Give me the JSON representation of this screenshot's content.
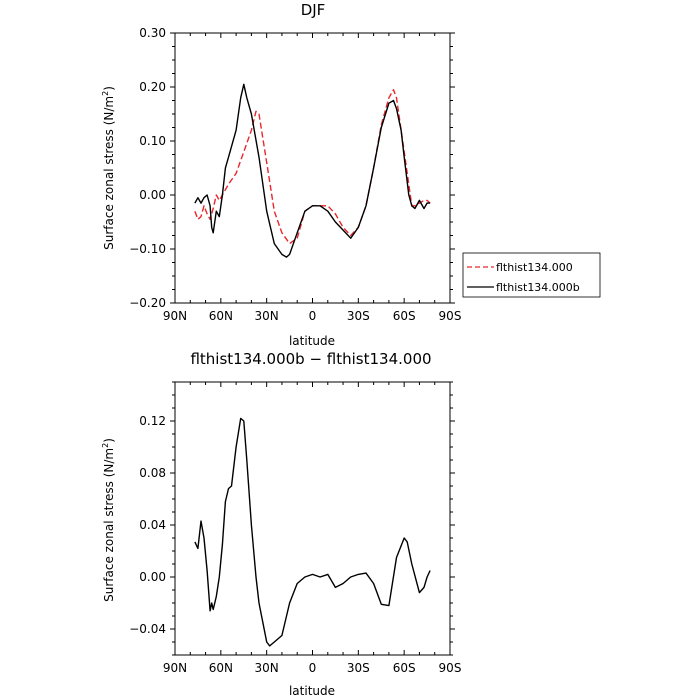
{
  "chart_data": [
    {
      "type": "line",
      "title": "DJF",
      "xlabel": "latitude",
      "ylabel": "Surface zonal stress (N/m²)",
      "ylabel_prefix": "Surface zonal stress (N/m",
      "ylabel_sup": "2",
      "ylabel_suffix": ")",
      "xlim": [
        90,
        -90
      ],
      "ylim": [
        -0.2,
        0.3
      ],
      "xticks": [
        90,
        60,
        30,
        0,
        -30,
        -60,
        -90
      ],
      "xtick_labels": [
        "90N",
        "60N",
        "30N",
        "0",
        "30S",
        "60S",
        "90S"
      ],
      "yticks": [
        -0.2,
        -0.1,
        0.0,
        0.1,
        0.2,
        0.3
      ],
      "ytick_labels": [
        "−0.20",
        "−0.10",
        "0.00",
        "0.10",
        "0.20",
        "0.30"
      ],
      "legend": {
        "placement": "right"
      },
      "series": [
        {
          "name": "flthist134.000",
          "color": "#e8262b",
          "dash": "dashed",
          "x": [
            77,
            75,
            73,
            71,
            69,
            67,
            65,
            63,
            61,
            59,
            55,
            50,
            45,
            40,
            37,
            35,
            30,
            25,
            20,
            15,
            10,
            5,
            0,
            -5,
            -10,
            -15,
            -20,
            -25,
            -30,
            -35,
            -40,
            -45,
            -50,
            -53,
            -55,
            -60,
            -65,
            -67,
            -70,
            -73,
            -75,
            -77
          ],
          "y": [
            -0.03,
            -0.045,
            -0.04,
            -0.02,
            -0.035,
            -0.045,
            -0.025,
            0.0,
            -0.01,
            0.0,
            0.02,
            0.04,
            0.08,
            0.12,
            0.155,
            0.15,
            0.06,
            -0.03,
            -0.07,
            -0.09,
            -0.08,
            -0.03,
            -0.02,
            -0.02,
            -0.02,
            -0.035,
            -0.06,
            -0.075,
            -0.06,
            -0.02,
            0.05,
            0.13,
            0.18,
            0.195,
            0.18,
            0.08,
            -0.02,
            -0.02,
            -0.015,
            -0.01,
            -0.01,
            -0.015
          ]
        },
        {
          "name": "flthist134.000b",
          "color": "#000000",
          "dash": "solid",
          "x": [
            77,
            75,
            73,
            71,
            69,
            67,
            66,
            65,
            63,
            61,
            59,
            57,
            55,
            50,
            47,
            45,
            43,
            40,
            35,
            30,
            25,
            20,
            17,
            15,
            10,
            5,
            0,
            -5,
            -10,
            -15,
            -20,
            -25,
            -30,
            -35,
            -40,
            -45,
            -50,
            -53,
            -55,
            -58,
            -60,
            -63,
            -65,
            -67,
            -70,
            -73,
            -75,
            -77
          ],
          "y": [
            -0.015,
            -0.005,
            -0.015,
            -0.005,
            0.0,
            -0.02,
            -0.06,
            -0.07,
            -0.03,
            -0.04,
            0.0,
            0.05,
            0.07,
            0.12,
            0.18,
            0.205,
            0.18,
            0.15,
            0.07,
            -0.03,
            -0.09,
            -0.11,
            -0.115,
            -0.11,
            -0.07,
            -0.03,
            -0.02,
            -0.02,
            -0.03,
            -0.05,
            -0.065,
            -0.08,
            -0.06,
            -0.02,
            0.05,
            0.125,
            0.17,
            0.175,
            0.16,
            0.12,
            0.07,
            0.0,
            -0.02,
            -0.025,
            -0.01,
            -0.025,
            -0.015,
            -0.015
          ]
        }
      ]
    },
    {
      "type": "line",
      "title": "flthist134.000b − flthist134.000",
      "xlabel": "latitude",
      "ylabel": "Surface zonal stress (N/m²)",
      "ylabel_prefix": "Surface zonal stress (N/m",
      "ylabel_sup": "2",
      "ylabel_suffix": ")",
      "xlim": [
        90,
        -90
      ],
      "ylim": [
        -0.06,
        0.15
      ],
      "xticks": [
        90,
        60,
        30,
        0,
        -30,
        -60,
        -90
      ],
      "xtick_labels": [
        "90N",
        "60N",
        "30N",
        "0",
        "30S",
        "60S",
        "90S"
      ],
      "yticks": [
        -0.04,
        0.0,
        0.04,
        0.08,
        0.12
      ],
      "ytick_labels": [
        "−0.04",
        "0.00",
        "0.04",
        "0.08",
        "0.12"
      ],
      "series": [
        {
          "color": "#000000",
          "dash": "solid",
          "x": [
            77,
            75,
            73,
            71,
            69,
            67,
            66,
            65,
            63,
            61,
            59,
            57,
            55,
            53,
            50,
            47,
            45,
            43,
            40,
            37,
            35,
            30,
            28,
            25,
            20,
            15,
            10,
            5,
            0,
            -5,
            -10,
            -15,
            -20,
            -25,
            -30,
            -35,
            -40,
            -45,
            -50,
            -55,
            -60,
            -62,
            -65,
            -70,
            -73,
            -75,
            -77
          ],
          "y": [
            0.027,
            0.022,
            0.043,
            0.03,
            0.005,
            -0.026,
            -0.02,
            -0.025,
            -0.015,
            0.0,
            0.025,
            0.058,
            0.068,
            0.07,
            0.1,
            0.122,
            0.12,
            0.09,
            0.04,
            0.0,
            -0.02,
            -0.05,
            -0.053,
            -0.05,
            -0.045,
            -0.02,
            -0.005,
            0.0,
            0.002,
            0.0,
            0.002,
            -0.008,
            -0.005,
            0.0,
            0.002,
            0.003,
            -0.005,
            -0.021,
            -0.022,
            0.015,
            0.03,
            0.027,
            0.01,
            -0.012,
            -0.008,
            0.0,
            0.005
          ]
        }
      ]
    }
  ]
}
